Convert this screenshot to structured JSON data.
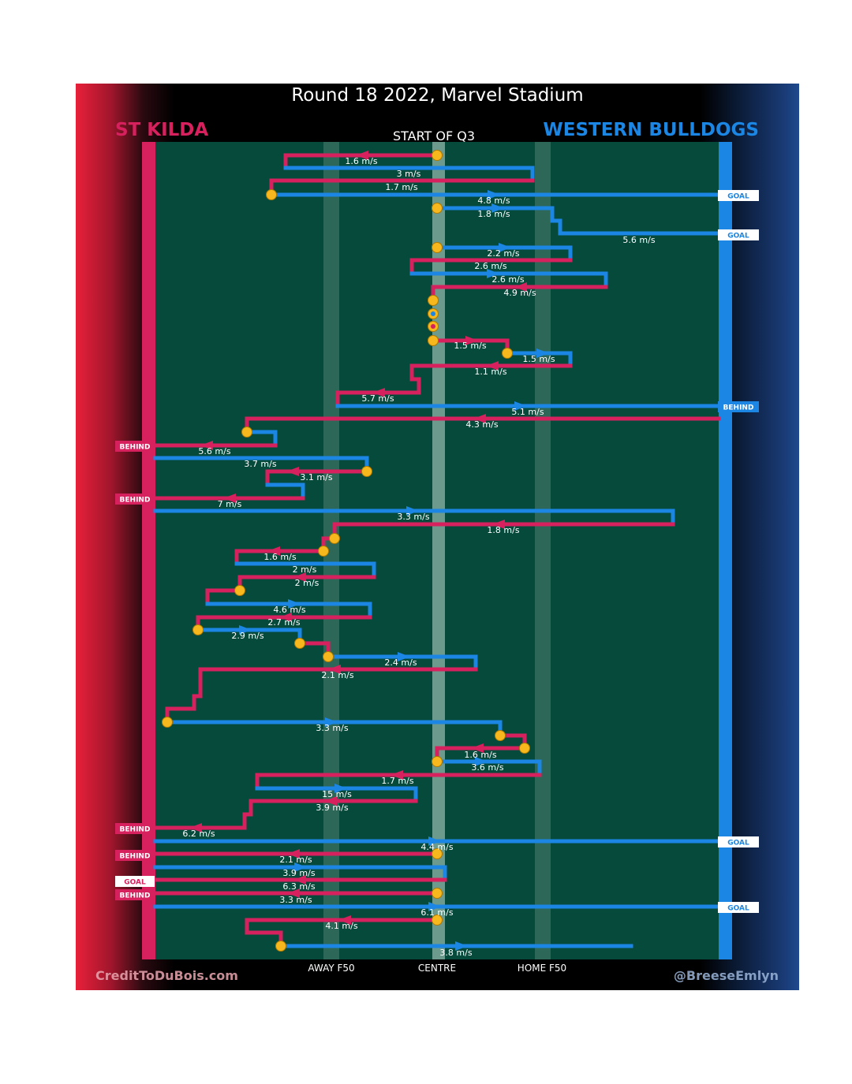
{
  "title": "Round 18 2022, Marvel Stadium",
  "teams": {
    "left": "ST KILDA",
    "right": "WESTERN BULLDOGS"
  },
  "phase": "START OF Q3",
  "credits": {
    "left": "CreditToDuBois.com",
    "right": "@BreeseEmlyn"
  },
  "colors": {
    "st_kilda": "#d7215e",
    "bulldogs": "#1b86e3",
    "field": "#064a3c",
    "ball": "#f6b81c"
  },
  "chart_data": {
    "type": "line",
    "title": "Round 18 2022, Marvel Stadium",
    "subtitle": "START OF Q3",
    "xlabel": "",
    "ylabel": "",
    "x_ticks": [
      "AWAY F50",
      "CENTRE",
      "HOME F50"
    ],
    "series": [
      {
        "name": "ST KILDA",
        "color": "#d7215e"
      },
      {
        "name": "WESTERN BULLDOGS",
        "color": "#1b86e3"
      }
    ],
    "speed_labels": [
      "1.6 m/s",
      "3 m/s",
      "1.7 m/s",
      "4.8 m/s",
      "1.8 m/s",
      "5.6 m/s",
      "2.2 m/s",
      "2.6 m/s",
      "2.6 m/s",
      "4.9 m/s",
      "1.5 m/s",
      "1.5 m/s",
      "1.1 m/s",
      "5.7 m/s",
      "5.1 m/s",
      "4.3 m/s",
      "5.6 m/s",
      "3.7 m/s",
      "3.1 m/s",
      "7 m/s",
      "3.3 m/s",
      "1.8 m/s",
      "1.6 m/s",
      "2 m/s",
      "2 m/s",
      "4.6 m/s",
      "2.7 m/s",
      "2.9 m/s",
      "2.4 m/s",
      "2.1 m/s",
      "3.3 m/s",
      "1.6 m/s",
      "3.6 m/s",
      "1.7 m/s",
      "15 m/s",
      "3.9 m/s",
      "6.2 m/s",
      "4.4 m/s",
      "2.1 m/s",
      "3.9 m/s",
      "6.3 m/s",
      "3.3 m/s",
      "6.1 m/s",
      "4.1 m/s",
      "3.8 m/s"
    ],
    "scores_left": [
      "BEHIND",
      "BEHIND",
      "BEHIND",
      "BEHIND",
      "GOAL",
      "BEHIND"
    ],
    "scores_right": [
      "GOAL",
      "GOAL",
      "BEHIND",
      "GOAL",
      "GOAL"
    ]
  }
}
